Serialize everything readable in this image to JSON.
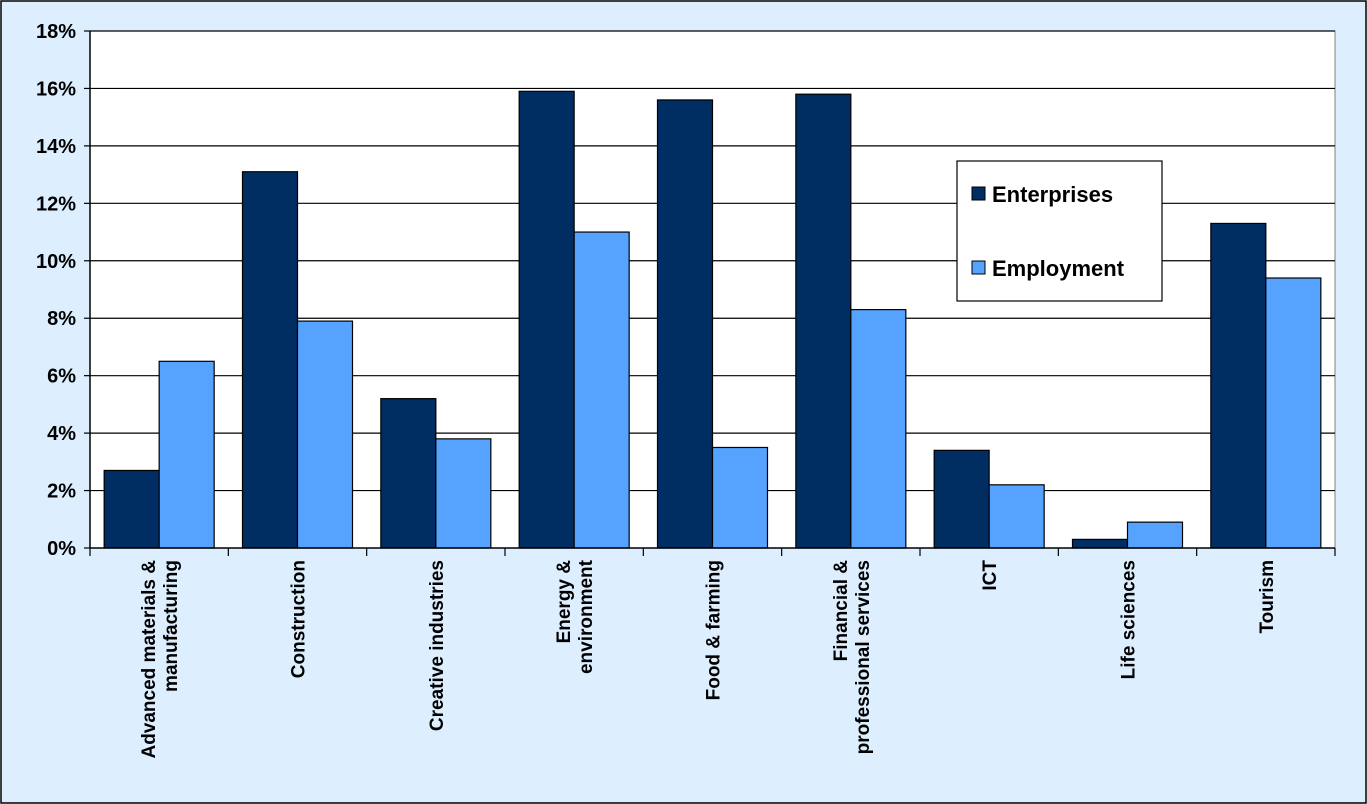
{
  "chart_data": {
    "type": "bar",
    "categories": [
      [
        "Advanced materials &",
        "manufacturing"
      ],
      [
        "Construction"
      ],
      [
        "Creative industries"
      ],
      [
        "Energy &",
        "environment"
      ],
      [
        "Food & farming"
      ],
      [
        "Financial &",
        "professional services"
      ],
      [
        "ICT"
      ],
      [
        "Life sciences"
      ],
      [
        "Tourism"
      ]
    ],
    "series": [
      {
        "name": "Enterprises",
        "color": "#002d62",
        "values": [
          2.7,
          13.1,
          5.2,
          15.9,
          15.6,
          15.8,
          3.4,
          0.3,
          11.3
        ]
      },
      {
        "name": "Employment",
        "color": "#55a2ff",
        "values": [
          6.5,
          7.9,
          3.8,
          11.0,
          3.5,
          8.3,
          2.2,
          0.9,
          9.4
        ]
      }
    ],
    "yticks": [
      "0%",
      "2%",
      "4%",
      "6%",
      "8%",
      "10%",
      "12%",
      "14%",
      "16%",
      "18%"
    ],
    "ylim": [
      0,
      18
    ],
    "grid": true,
    "legend": "right",
    "colors": {
      "background": "#ddeeff",
      "plot_background": "#ffffff",
      "axis": "#000000"
    }
  }
}
